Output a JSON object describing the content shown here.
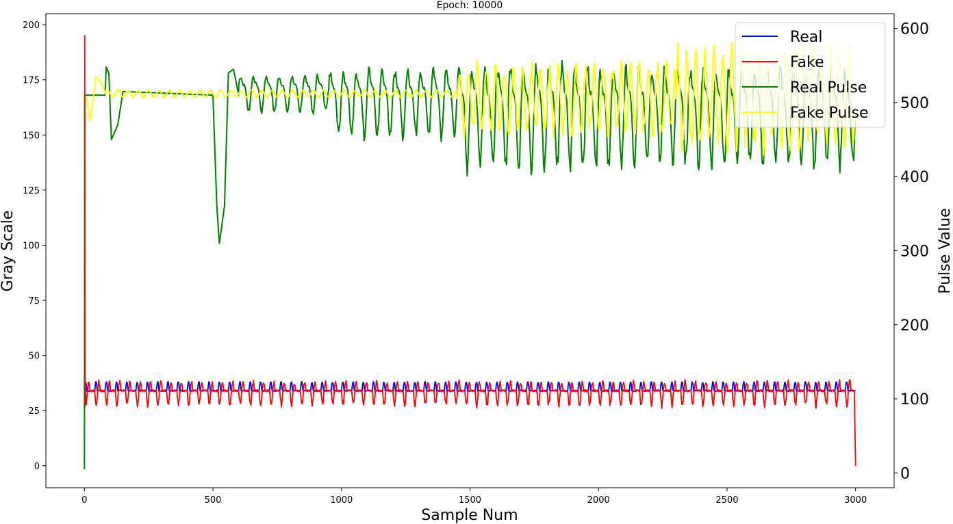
{
  "chart_data": {
    "type": "line",
    "title": "Epoch: 10000",
    "xlabel": "Sample Num",
    "ylabel": "Gray Scale",
    "y2label": "Pulse Value",
    "xlim": [
      -150,
      3150
    ],
    "ylim": [
      -10,
      205
    ],
    "y2lim": [
      -20,
      620
    ],
    "xticks": [
      0,
      500,
      1000,
      1500,
      2000,
      2500,
      3000
    ],
    "yticks": [
      0,
      25,
      50,
      75,
      100,
      125,
      150,
      175,
      200
    ],
    "y2ticks": [
      0,
      100,
      200,
      300,
      400,
      500,
      600
    ],
    "legend_position": "upper-right",
    "grid": false,
    "series": [
      {
        "name": "Real",
        "axis": "left",
        "color": "#0000ff",
        "description_points": [
          [
            0,
            34
          ],
          [
            20,
            34
          ],
          [
            30,
            38
          ],
          [
            40,
            34
          ],
          [
            60,
            34
          ],
          [
            70,
            38
          ],
          [
            80,
            34
          ],
          [
            100,
            34
          ],
          [
            110,
            38
          ],
          [
            120,
            34
          ],
          [
            500,
            34
          ],
          [
            1000,
            34
          ],
          [
            1500,
            34
          ],
          [
            2000,
            34
          ],
          [
            2500,
            34
          ],
          [
            3000,
            35
          ]
        ],
        "baseline": 34,
        "peak": 38,
        "period": 40
      },
      {
        "name": "Fake",
        "axis": "left",
        "color": "#ff0000",
        "baseline": 34,
        "trough": 27,
        "peak": 39,
        "period": 40,
        "start": [
          [
            0,
            195
          ],
          [
            1,
            195
          ],
          [
            2,
            27
          ],
          [
            5,
            35
          ]
        ],
        "end": [
          [
            2995,
            34
          ],
          [
            3000,
            0
          ]
        ]
      },
      {
        "name": "Real Pulse",
        "axis": "right",
        "color": "#008000",
        "start": [
          [
            0,
            5
          ],
          [
            1,
            510
          ],
          [
            80,
            510
          ],
          [
            85,
            548
          ],
          [
            95,
            540
          ],
          [
            105,
            450
          ],
          [
            130,
            470
          ],
          [
            150,
            515
          ],
          [
            500,
            510
          ],
          [
            515,
            360
          ],
          [
            525,
            310
          ],
          [
            545,
            360
          ],
          [
            560,
            540
          ],
          [
            580,
            545
          ],
          [
            600,
            510
          ]
        ],
        "segments": [
          {
            "from": 600,
            "to": 950,
            "center": 515,
            "amp": 25,
            "period": 50
          },
          {
            "from": 950,
            "to": 1450,
            "center": 505,
            "amp": 45,
            "period": 50
          },
          {
            "from": 1450,
            "to": 2000,
            "center": 490,
            "amp": 70,
            "period": 50
          },
          {
            "from": 2000,
            "to": 3000,
            "center": 490,
            "amp": 65,
            "period": 50
          }
        ]
      },
      {
        "name": "Fake Pulse",
        "axis": "right",
        "color": "#ffff00",
        "start": [
          [
            0,
            510
          ],
          [
            10,
            505
          ],
          [
            20,
            475
          ],
          [
            30,
            495
          ],
          [
            45,
            535
          ],
          [
            60,
            530
          ],
          [
            80,
            515
          ]
        ],
        "segments": [
          {
            "from": 80,
            "to": 1450,
            "center": 512,
            "amp": 5,
            "period": 40
          },
          {
            "from": 1450,
            "to": 2300,
            "center": 505,
            "amp": 45,
            "period": 35
          },
          {
            "from": 2300,
            "to": 3000,
            "center": 505,
            "amp": 65,
            "period": 35
          }
        ]
      }
    ]
  }
}
